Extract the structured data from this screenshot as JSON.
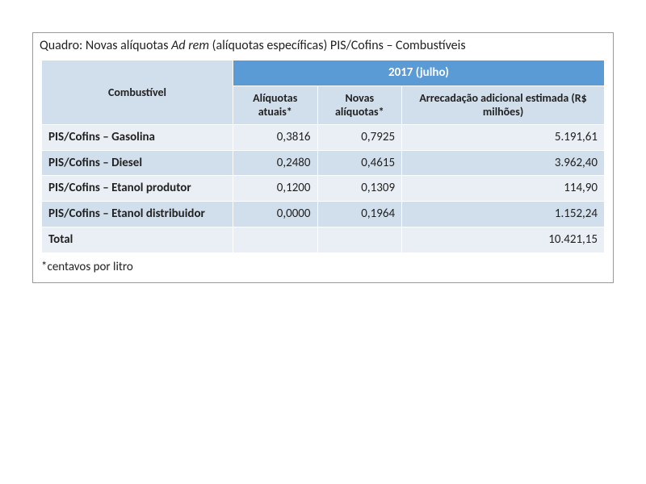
{
  "caption_prefix": "Quadro: Novas alíquotas ",
  "caption_italic": "Ad rem ",
  "caption_suffix": "(alíquotas específicas) PIS/Cofins – Combustíveis",
  "header_year": "2017 (julho)",
  "header_combust": "Combustível",
  "sub_aliq_atuais_bold": "Alíquotas atuais",
  "sub_aliq_atuais_star": "*",
  "sub_novas_bold": "Novas alíquotas",
  "sub_novas_star": "*",
  "sub_arrec_bold": "Arrecadação adicional estimada ",
  "sub_arrec_light": "(R$ milhões)",
  "rows": [
    {
      "label": "PIS/Cofins – Gasolina",
      "atuais": "0,3816",
      "novas": "0,7925",
      "arrec": "5.191,61"
    },
    {
      "label": "PIS/Cofins – Diesel",
      "atuais": "0,2480",
      "novas": "0,4615",
      "arrec": "3.962,40"
    },
    {
      "label": "PIS/Cofins – Etanol produtor",
      "atuais": "0,1200",
      "novas": "0,1309",
      "arrec": "114,90"
    },
    {
      "label": "PIS/Cofins – Etanol distribuidor",
      "atuais": "0,0000",
      "novas": "0,1964",
      "arrec": "1.152,24"
    }
  ],
  "total_label": "Total",
  "total_arrec": "10.421,15",
  "footnote": "*centavos por litro",
  "colors": {
    "header_bg": "#5b9bd5",
    "band_a": "#eaeff5",
    "band_b": "#d1deeb",
    "border": "#ffffff",
    "outer_border": "#999999",
    "text": "#222222"
  },
  "layout": {
    "col_widths_pct": [
      34,
      15,
      15,
      36
    ],
    "font_family": "Calibri",
    "combust_fontsize_pt": 20,
    "cell_fontsize_pt": 15,
    "subhdr_fontsize_pt": 14,
    "caption_fontsize_pt": 16
  }
}
